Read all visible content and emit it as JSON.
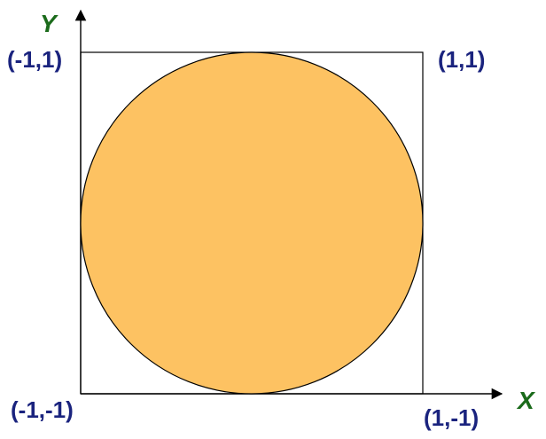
{
  "axes": {
    "x_label": "X",
    "y_label": "Y"
  },
  "corners": {
    "top_left": "(-1,1)",
    "top_right": "(1,1)",
    "bottom_left": "(-1,-1)",
    "bottom_right": "(1,-1)"
  },
  "colors": {
    "circle_fill": "#fdc262",
    "stroke": "#000000",
    "label_text": "#1a237e",
    "axis_label": "#1b6b1b"
  }
}
